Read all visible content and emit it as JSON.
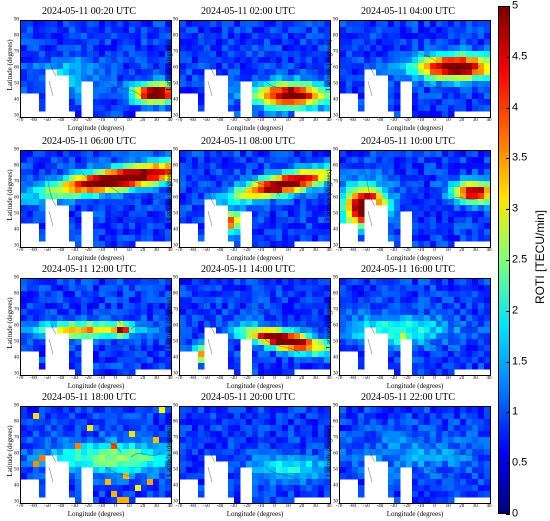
{
  "figure": {
    "panels": [
      {
        "title": "2024-05-11 00:20 UTC",
        "pattern": "low-east-red"
      },
      {
        "title": "2024-05-11 02:00 UTC",
        "pattern": "low-east-red2"
      },
      {
        "title": "2024-05-11 04:00 UTC",
        "pattern": "band-east"
      },
      {
        "title": "2024-05-11 06:00 UTC",
        "pattern": "band-wide"
      },
      {
        "title": "2024-05-11 08:00 UTC",
        "pattern": "band-diag"
      },
      {
        "title": "2024-05-11 10:00 UTC",
        "pattern": "blob-west"
      },
      {
        "title": "2024-05-11 12:00 UTC",
        "pattern": "thin-band"
      },
      {
        "title": "2024-05-11 14:00 UTC",
        "pattern": "band-mid"
      },
      {
        "title": "2024-05-11 16:00 UTC",
        "pattern": "weak-band"
      },
      {
        "title": "2024-05-11 18:00 UTC",
        "pattern": "spots"
      },
      {
        "title": "2024-05-11 20:00 UTC",
        "pattern": "quiet"
      },
      {
        "title": "2024-05-11 22:00 UTC",
        "pattern": "quiet2"
      }
    ],
    "ylabel": "Latitude (degrees)",
    "xlabel": "Longitude (degrees)",
    "xticks": [
      "-70",
      "-60",
      "-50",
      "-40",
      "-30",
      "-20",
      "-10",
      "0",
      "10",
      "20",
      "30",
      "40"
    ],
    "yticks": [
      "90",
      "80",
      "70",
      "60",
      "50",
      "40",
      "30"
    ],
    "colorbar": {
      "label": "ROTI [TECU/min]",
      "min": 0,
      "max": 5,
      "ticks": [
        "0",
        "0.5",
        "1",
        "1.5",
        "2",
        "2.5",
        "3",
        "3.5",
        "4",
        "4.5",
        "5"
      ],
      "colormap": "jet"
    }
  }
}
